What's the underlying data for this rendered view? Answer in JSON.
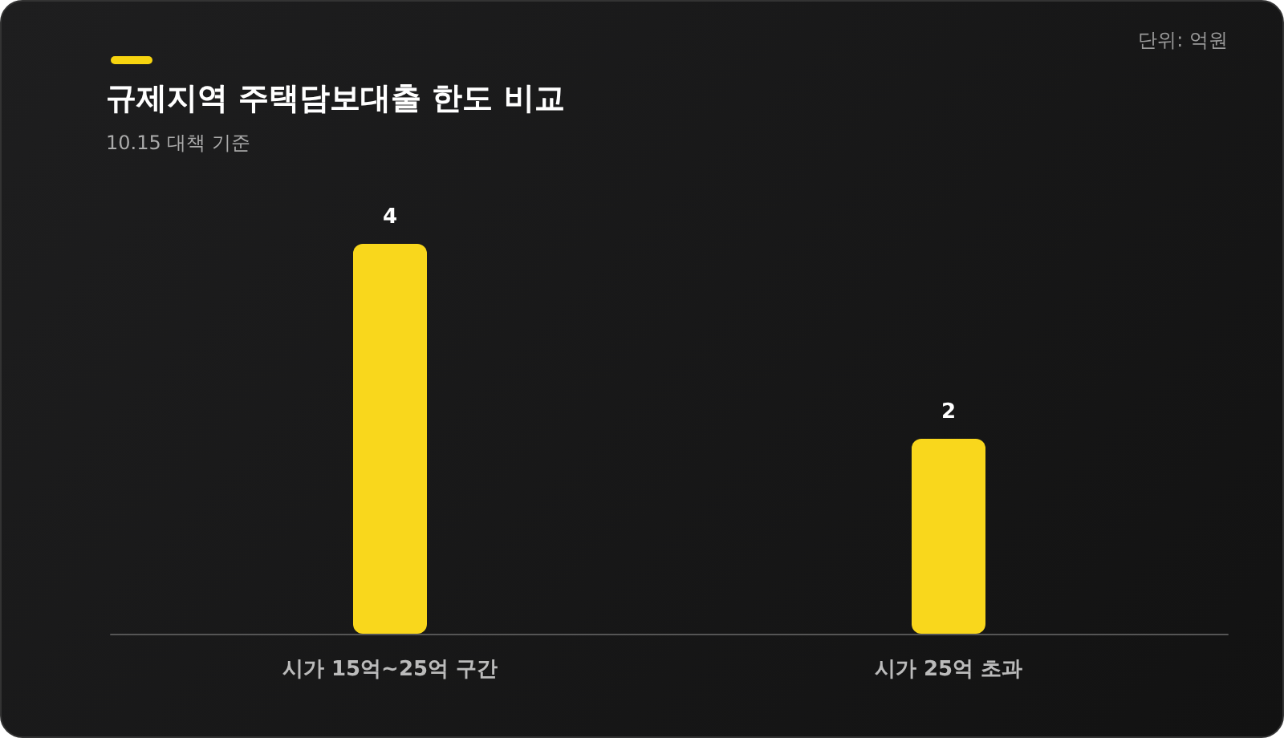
{
  "chart_data": {
    "type": "bar",
    "title": "규제지역 주택담보대출 한도 비교",
    "subtitle": "10.15 대책 기준",
    "annotations": [
      "단위: 억원"
    ],
    "categories": [
      "시가 15억~25억 구간",
      "시가 25억 초과"
    ],
    "values": [
      4,
      2
    ],
    "color": "#f9d71c",
    "tick_labels": "x",
    "data_labels": true
  }
}
